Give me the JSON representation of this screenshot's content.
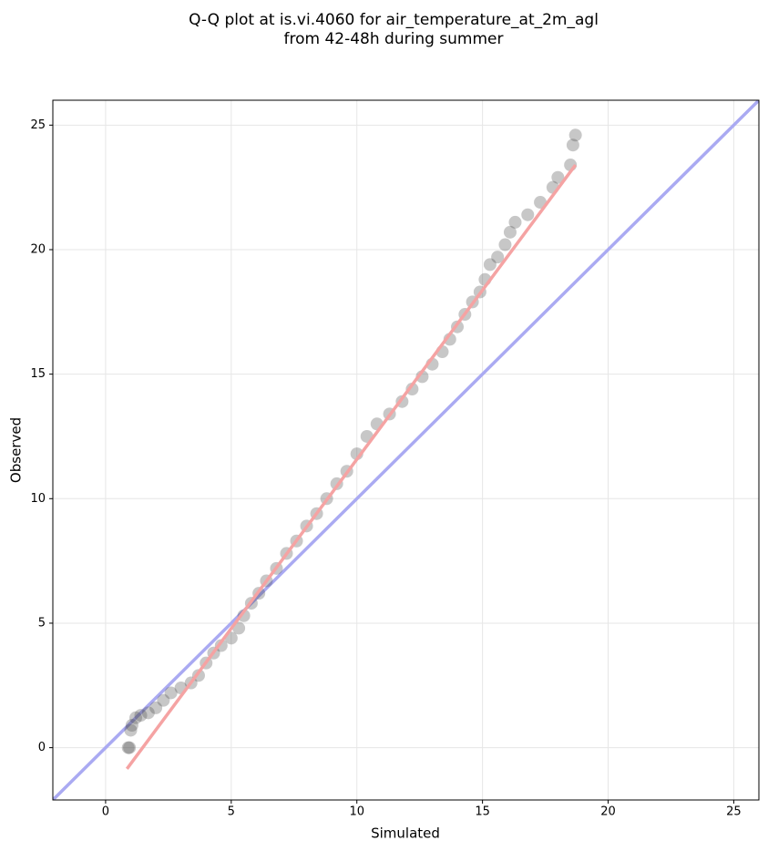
{
  "chart_data": {
    "type": "scatter",
    "title": [
      "Q-Q plot at is.vi.4060 for air_temperature_at_2m_agl",
      "from 42-48h during summer"
    ],
    "x_label": "Simulated",
    "y_label": "Observed",
    "xlim": [
      -2.1,
      26
    ],
    "ylim": [
      -2.1,
      26
    ],
    "xticks": [
      0,
      5,
      10,
      15,
      20,
      25
    ],
    "yticks": [
      0,
      5,
      10,
      15,
      20,
      25
    ],
    "grid": true,
    "point_color": "#444444",
    "x": [
      0.9,
      0.95,
      1.0,
      1.05,
      1.2,
      1.4,
      1.7,
      2.0,
      2.3,
      2.6,
      3.0,
      3.4,
      3.7,
      4.0,
      4.3,
      4.6,
      5.0,
      5.3,
      5.5,
      5.8,
      6.1,
      6.4,
      6.8,
      7.2,
      7.6,
      8.0,
      8.4,
      8.8,
      9.2,
      9.6,
      10.0,
      10.4,
      10.8,
      11.3,
      11.8,
      12.2,
      12.6,
      13.0,
      13.4,
      13.7,
      14.0,
      14.3,
      14.6,
      14.9,
      15.1,
      15.3,
      15.6,
      15.9,
      16.1,
      16.3,
      16.8,
      17.3,
      17.8,
      18.0,
      18.5,
      18.6,
      18.7
    ],
    "values": [
      0.0,
      0.0,
      0.7,
      0.9,
      1.2,
      1.3,
      1.4,
      1.6,
      1.9,
      2.2,
      2.4,
      2.6,
      2.9,
      3.4,
      3.8,
      4.1,
      4.4,
      4.8,
      5.3,
      5.8,
      6.2,
      6.7,
      7.2,
      7.8,
      8.3,
      8.9,
      9.4,
      10.0,
      10.6,
      11.1,
      11.8,
      12.5,
      13.0,
      13.4,
      13.9,
      14.4,
      14.9,
      15.4,
      15.9,
      16.4,
      16.9,
      17.4,
      17.9,
      18.3,
      18.8,
      19.4,
      19.7,
      20.2,
      20.7,
      21.1,
      21.4,
      21.9,
      22.5,
      22.9,
      23.4,
      24.2,
      24.6
    ],
    "lines": [
      {
        "color": "#aaaaf2",
        "x": [
          -2.1,
          26
        ],
        "values": [
          -2.1,
          26
        ]
      },
      {
        "color": "#f5a3a3",
        "x": [
          0.85,
          18.7
        ],
        "values": [
          -0.85,
          23.4
        ]
      }
    ]
  }
}
